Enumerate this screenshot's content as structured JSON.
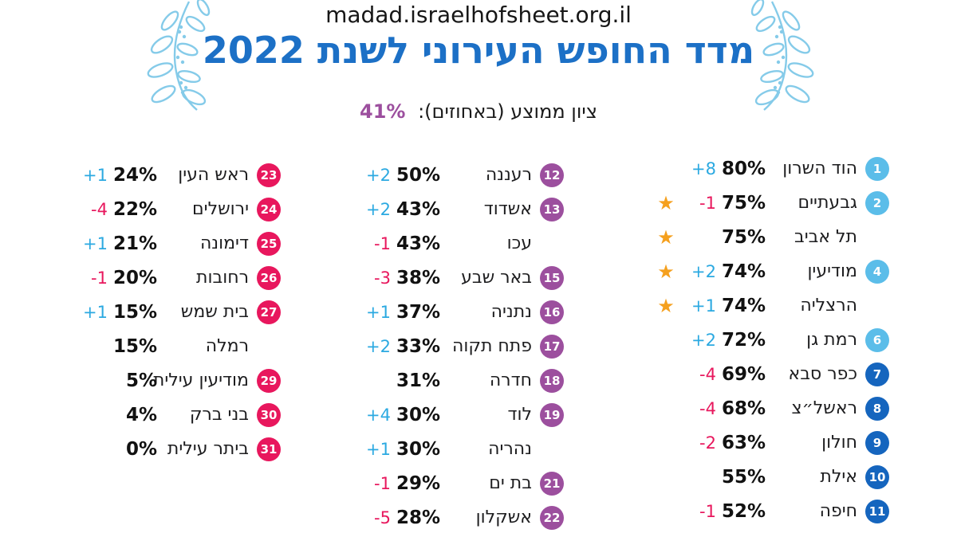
{
  "header": {
    "url": "madad.israelhofsheet.org.il",
    "title": "מדד החופש העירוני לשנת 2022",
    "average_label": "ציון ממוצע (באחוזים):",
    "average_value": "41%"
  },
  "colors": {
    "title_blue": "#1C70C6",
    "average_value_purple": "#9C4F9E",
    "laurel_blue": "#85CBE9",
    "badge_light_blue": "#5BBDE9",
    "badge_dark_blue": "#1565BE",
    "badge_purple": "#9C4F9E",
    "badge_red": "#E8175D",
    "change_up": "#2BA9E1",
    "change_down": "#E8175D",
    "star_orange": "#F5A01E"
  },
  "chart_data": {
    "type": "table",
    "title": "מדד החופש העירוני לשנת 2022",
    "source_url": "madad.israelhofsheet.org.il",
    "average_score_label": "ציון ממוצע (באחוזים):",
    "average_score_pct": 41,
    "columns": [
      "rank",
      "city",
      "score_pct",
      "change",
      "star"
    ],
    "column_groups": [
      {
        "ranks": "1-11",
        "rows": [
          {
            "rank": 1,
            "city": "הוד השרון",
            "score_pct": 80,
            "change": 8,
            "star": false,
            "badge": "badge_light_blue"
          },
          {
            "rank": 2,
            "city": "גבעתיים",
            "score_pct": 75,
            "change": -1,
            "star": true,
            "badge": "badge_light_blue"
          },
          {
            "rank": null,
            "city": "תל אביב",
            "score_pct": 75,
            "change": null,
            "star": true,
            "badge": null
          },
          {
            "rank": 4,
            "city": "מודיעין",
            "score_pct": 74,
            "change": 2,
            "star": true,
            "badge": "badge_light_blue"
          },
          {
            "rank": null,
            "city": "הרצליה",
            "score_pct": 74,
            "change": 1,
            "star": true,
            "badge": null
          },
          {
            "rank": 6,
            "city": "רמת גן",
            "score_pct": 72,
            "change": 2,
            "star": false,
            "badge": "badge_light_blue"
          },
          {
            "rank": 7,
            "city": "כפר סבא",
            "score_pct": 69,
            "change": -4,
            "star": false,
            "badge": "badge_dark_blue"
          },
          {
            "rank": 8,
            "city": "ראשל״צ",
            "score_pct": 68,
            "change": -4,
            "star": false,
            "badge": "badge_dark_blue"
          },
          {
            "rank": 9,
            "city": "חולון",
            "score_pct": 63,
            "change": -2,
            "star": false,
            "badge": "badge_dark_blue"
          },
          {
            "rank": 10,
            "city": "אילת",
            "score_pct": 55,
            "change": null,
            "star": false,
            "badge": "badge_dark_blue"
          },
          {
            "rank": 11,
            "city": "חיפה",
            "score_pct": 52,
            "change": -1,
            "star": false,
            "badge": "badge_dark_blue"
          }
        ]
      },
      {
        "ranks": "12-22",
        "rows": [
          {
            "rank": 12,
            "city": "רעננה",
            "score_pct": 50,
            "change": 2,
            "star": false,
            "badge": "badge_purple"
          },
          {
            "rank": 13,
            "city": "אשדוד",
            "score_pct": 43,
            "change": 2,
            "star": false,
            "badge": "badge_purple"
          },
          {
            "rank": null,
            "city": "עכו",
            "score_pct": 43,
            "change": -1,
            "star": false,
            "badge": null
          },
          {
            "rank": 15,
            "city": "באר שבע",
            "score_pct": 38,
            "change": -3,
            "star": false,
            "badge": "badge_purple"
          },
          {
            "rank": 16,
            "city": "נתניה",
            "score_pct": 37,
            "change": 1,
            "star": false,
            "badge": "badge_purple"
          },
          {
            "rank": 17,
            "city": "פתח תקוה",
            "score_pct": 33,
            "change": 2,
            "star": false,
            "badge": "badge_purple"
          },
          {
            "rank": 18,
            "city": "חדרה",
            "score_pct": 31,
            "change": null,
            "star": false,
            "badge": "badge_purple"
          },
          {
            "rank": 19,
            "city": "לוד",
            "score_pct": 30,
            "change": 4,
            "star": false,
            "badge": "badge_purple"
          },
          {
            "rank": null,
            "city": "נהריה",
            "score_pct": 30,
            "change": 1,
            "star": false,
            "badge": null
          },
          {
            "rank": 21,
            "city": "בת ים",
            "score_pct": 29,
            "change": -1,
            "star": false,
            "badge": "badge_purple"
          },
          {
            "rank": 22,
            "city": "אשקלון",
            "score_pct": 28,
            "change": -5,
            "star": false,
            "badge": "badge_purple"
          }
        ]
      },
      {
        "ranks": "23-31",
        "rows": [
          {
            "rank": 23,
            "city": "ראש העין",
            "score_pct": 24,
            "change": 1,
            "star": false,
            "badge": "badge_red"
          },
          {
            "rank": 24,
            "city": "ירושלים",
            "score_pct": 22,
            "change": -4,
            "star": false,
            "badge": "badge_red"
          },
          {
            "rank": 25,
            "city": "דימונה",
            "score_pct": 21,
            "change": 1,
            "star": false,
            "badge": "badge_red"
          },
          {
            "rank": 26,
            "city": "רחובות",
            "score_pct": 20,
            "change": -1,
            "star": false,
            "badge": "badge_red"
          },
          {
            "rank": 27,
            "city": "בית שמש",
            "score_pct": 15,
            "change": 1,
            "star": false,
            "badge": "badge_red"
          },
          {
            "rank": null,
            "city": "רמלה",
            "score_pct": 15,
            "change": null,
            "star": false,
            "badge": null
          },
          {
            "rank": 29,
            "city": "מודיעין עילית",
            "score_pct": 5,
            "change": null,
            "star": false,
            "badge": "badge_red"
          },
          {
            "rank": 30,
            "city": "בני ברק",
            "score_pct": 4,
            "change": null,
            "star": false,
            "badge": "badge_red"
          },
          {
            "rank": 31,
            "city": "ביתר עילית",
            "score_pct": 0,
            "change": null,
            "star": false,
            "badge": "badge_red"
          }
        ]
      }
    ]
  }
}
